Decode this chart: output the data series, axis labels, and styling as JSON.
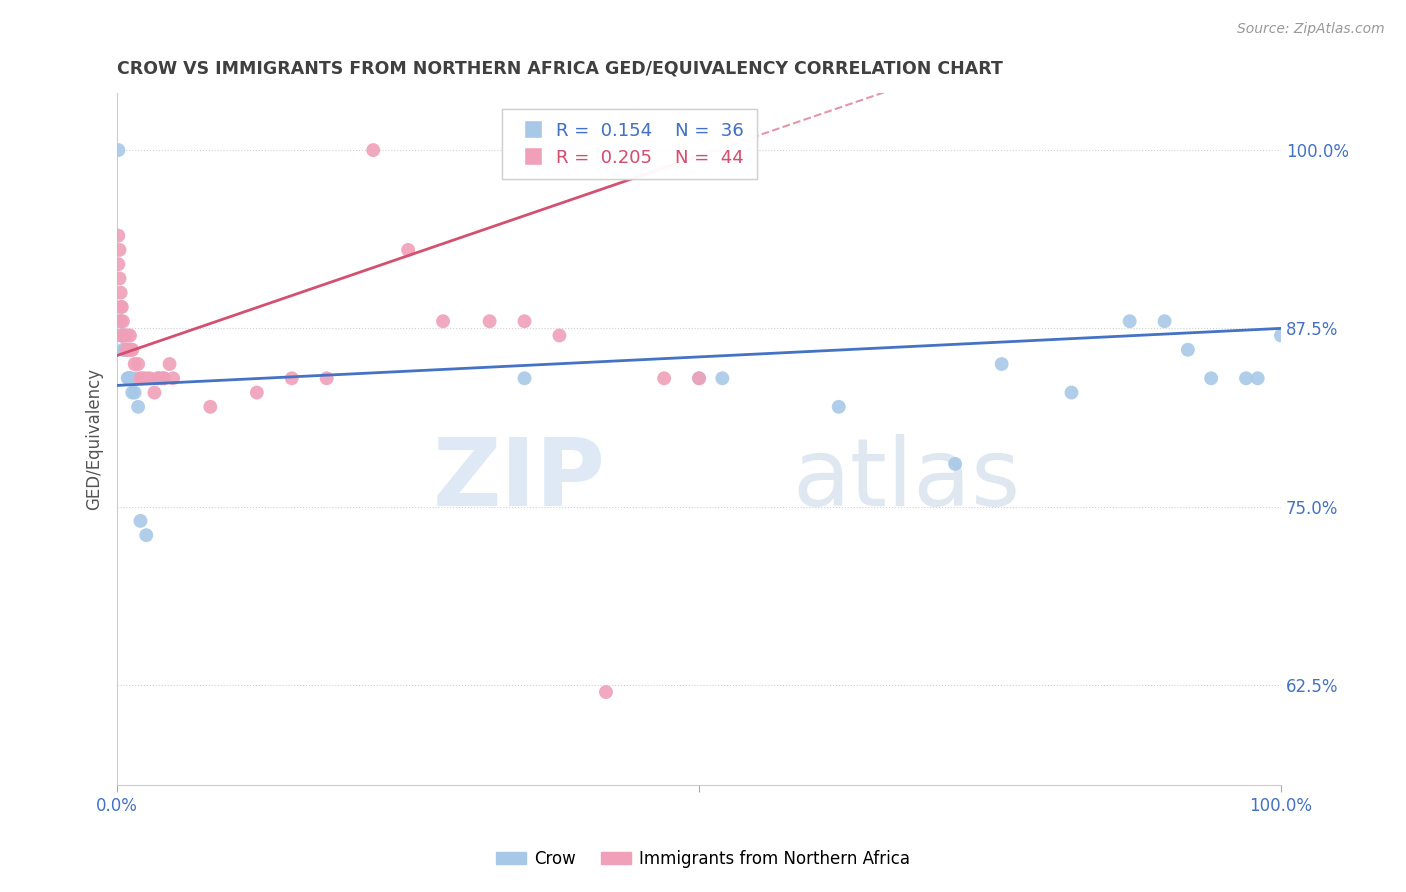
{
  "title": "CROW VS IMMIGRANTS FROM NORTHERN AFRICA GED/EQUIVALENCY CORRELATION CHART",
  "source": "Source: ZipAtlas.com",
  "ylabel": "GED/Equivalency",
  "xlim": [
    0,
    1
  ],
  "ylim": [
    0.555,
    1.04
  ],
  "yticks": [
    0.625,
    0.75,
    0.875,
    1.0
  ],
  "ytick_labels": [
    "62.5%",
    "75.0%",
    "87.5%",
    "100.0%"
  ],
  "crow_color": "#a8c8e8",
  "crow_line_color": "#4472c4",
  "nafr_color": "#f0a0b8",
  "nafr_line_color": "#d45070",
  "legend_crow_R": "0.154",
  "legend_crow_N": "36",
  "legend_nafr_R": "0.205",
  "legend_nafr_N": "44",
  "crow_x": [
    0.001,
    0.002,
    0.003,
    0.003,
    0.004,
    0.005,
    0.005,
    0.006,
    0.007,
    0.008,
    0.009,
    0.01,
    0.011,
    0.012,
    0.013,
    0.015,
    0.016,
    0.018,
    0.02,
    0.025,
    0.035,
    0.04,
    0.35,
    0.5,
    0.52,
    0.62,
    0.72,
    0.76,
    0.82,
    0.87,
    0.9,
    0.92,
    0.94,
    0.97,
    0.98,
    1.0
  ],
  "crow_y": [
    1.0,
    0.88,
    0.88,
    0.87,
    0.87,
    0.86,
    0.87,
    0.86,
    0.86,
    0.86,
    0.84,
    0.84,
    0.84,
    0.84,
    0.83,
    0.83,
    0.84,
    0.82,
    0.74,
    0.73,
    0.84,
    0.84,
    0.84,
    0.84,
    0.84,
    0.82,
    0.78,
    0.85,
    0.83,
    0.88,
    0.88,
    0.86,
    0.84,
    0.84,
    0.84,
    0.87
  ],
  "nafr_x": [
    0.001,
    0.001,
    0.002,
    0.002,
    0.003,
    0.003,
    0.003,
    0.004,
    0.004,
    0.005,
    0.005,
    0.006,
    0.007,
    0.008,
    0.009,
    0.01,
    0.011,
    0.012,
    0.013,
    0.015,
    0.018,
    0.02,
    0.022,
    0.025,
    0.028,
    0.032,
    0.035,
    0.038,
    0.04,
    0.045,
    0.048,
    0.08,
    0.12,
    0.15,
    0.18,
    0.22,
    0.25,
    0.28,
    0.32,
    0.35,
    0.38,
    0.42,
    0.47,
    0.5
  ],
  "nafr_y": [
    0.94,
    0.92,
    0.93,
    0.91,
    0.9,
    0.89,
    0.88,
    0.89,
    0.87,
    0.88,
    0.87,
    0.87,
    0.87,
    0.86,
    0.87,
    0.86,
    0.87,
    0.86,
    0.86,
    0.85,
    0.85,
    0.84,
    0.84,
    0.84,
    0.84,
    0.83,
    0.84,
    0.84,
    0.84,
    0.85,
    0.84,
    0.82,
    0.83,
    0.84,
    0.84,
    1.0,
    0.93,
    0.88,
    0.88,
    0.88,
    0.87,
    0.62,
    0.84,
    0.84
  ],
  "watermark_zip": "ZIP",
  "watermark_atlas": "atlas",
  "background_color": "#ffffff",
  "grid_color": "#d0d0d0",
  "title_color": "#404040",
  "axis_color": "#4472c4",
  "marker_size": 100
}
